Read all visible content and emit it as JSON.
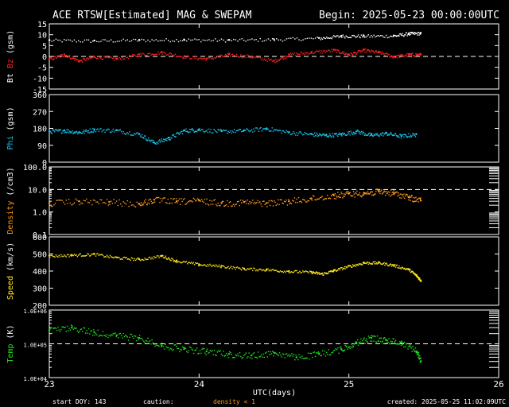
{
  "header": {
    "title": "ACE RTSW[Estimated] MAG & SWEPAM",
    "begin": "Begin: 2025-05-23 00:00:00UTC"
  },
  "footer": {
    "start_doy": "start DOY: 143",
    "caution": "caution:",
    "density_note": "density < 1",
    "created": "created: 2025-05-25 11:02:09UTC"
  },
  "colors": {
    "bt": "#ffffff",
    "bz": "#ff2020",
    "phi": "#19c8f0",
    "density": "#ff9a1a",
    "speed": "#ffea1a",
    "temp": "#20e020",
    "axis": "#ffffff",
    "background": "#000000"
  },
  "chart_data": {
    "type": "scatter",
    "xlabel": "UTC(days)",
    "xlim": [
      23,
      26
    ],
    "x_ticks": [
      "23",
      "24",
      "25",
      "26"
    ],
    "panels": [
      {
        "id": "bt-bz",
        "ylabel_parts": [
          {
            "text": "Bt",
            "color": "#ffffff"
          },
          {
            "text": " Bz",
            "color": "#ff2020"
          },
          {
            "text": " (gsm)",
            "color": "#ffffff"
          }
        ],
        "ylim": [
          -15,
          15
        ],
        "y_ticks": [
          "15",
          "10",
          "5",
          "0",
          "-5",
          "-10",
          "-15"
        ],
        "y_tick_values": [
          15,
          10,
          5,
          0,
          -5,
          -10,
          -15
        ],
        "log": false,
        "dashed_ref": 0,
        "series": [
          {
            "name": "Bt",
            "color": "#ffffff",
            "points": [
              [
                23.0,
                7.5
              ],
              [
                23.3,
                7.3
              ],
              [
                23.6,
                7.6
              ],
              [
                23.9,
                7.8
              ],
              [
                24.2,
                7.6
              ],
              [
                24.5,
                7.9
              ],
              [
                24.8,
                8.5
              ],
              [
                24.95,
                9.5
              ],
              [
                25.1,
                9.5
              ],
              [
                25.3,
                9.6
              ],
              [
                25.4,
                10.6
              ],
              [
                25.48,
                10.8
              ]
            ]
          },
          {
            "name": "Bz",
            "color": "#ff2020",
            "points": [
              [
                23.0,
                -1
              ],
              [
                23.1,
                1
              ],
              [
                23.2,
                -2
              ],
              [
                23.3,
                0
              ],
              [
                23.45,
                -1
              ],
              [
                23.6,
                1
              ],
              [
                23.75,
                2
              ],
              [
                23.9,
                0
              ],
              [
                24.05,
                -1
              ],
              [
                24.2,
                1
              ],
              [
                24.35,
                0
              ],
              [
                24.5,
                -2
              ],
              [
                24.6,
                1
              ],
              [
                24.75,
                2
              ],
              [
                24.9,
                3
              ],
              [
                25.0,
                1
              ],
              [
                25.1,
                3
              ],
              [
                25.2,
                2
              ],
              [
                25.3,
                0
              ],
              [
                25.4,
                1
              ],
              [
                25.48,
                1
              ]
            ]
          }
        ]
      },
      {
        "id": "phi",
        "ylabel_parts": [
          {
            "text": "Phi",
            "color": "#19c8f0"
          },
          {
            "text": " (gsm)",
            "color": "#ffffff"
          }
        ],
        "ylim": [
          0,
          360
        ],
        "y_ticks": [
          "360",
          "270",
          "180",
          "90",
          "0"
        ],
        "y_tick_values": [
          360,
          270,
          180,
          90,
          0
        ],
        "log": false,
        "series": [
          {
            "name": "Phi",
            "color": "#19c8f0",
            "points": [
              [
                23.0,
                165
              ],
              [
                23.1,
                170
              ],
              [
                23.2,
                160
              ],
              [
                23.3,
                175
              ],
              [
                23.45,
                170
              ],
              [
                23.6,
                150
              ],
              [
                23.7,
                105
              ],
              [
                23.8,
                130
              ],
              [
                23.9,
                170
              ],
              [
                24.0,
                175
              ],
              [
                24.15,
                165
              ],
              [
                24.3,
                170
              ],
              [
                24.45,
                180
              ],
              [
                24.6,
                160
              ],
              [
                24.75,
                150
              ],
              [
                24.85,
                145
              ],
              [
                24.95,
                150
              ],
              [
                25.05,
                165
              ],
              [
                25.15,
                145
              ],
              [
                25.25,
                155
              ],
              [
                25.35,
                140
              ],
              [
                25.45,
                150
              ]
            ]
          }
        ]
      },
      {
        "id": "density",
        "ylabel_parts": [
          {
            "text": "Density",
            "color": "#ff9a1a"
          },
          {
            "text": " (/cm3)",
            "color": "#ffffff"
          }
        ],
        "ylim": [
          0.1,
          100
        ],
        "y_ticks": [
          "100.0",
          "10.0",
          "1.0",
          "0.1"
        ],
        "y_tick_values": [
          100,
          10,
          1,
          0.1
        ],
        "log": true,
        "dashed_ref": 10,
        "series": [
          {
            "name": "Density",
            "color": "#ff9a1a",
            "points": [
              [
                23.0,
                2.5
              ],
              [
                23.2,
                3.0
              ],
              [
                23.4,
                2.8
              ],
              [
                23.6,
                2.3
              ],
              [
                23.7,
                3.5
              ],
              [
                23.85,
                3.0
              ],
              [
                24.0,
                3.2
              ],
              [
                24.15,
                2.5
              ],
              [
                24.3,
                2.8
              ],
              [
                24.45,
                2.5
              ],
              [
                24.6,
                3.0
              ],
              [
                24.75,
                4.0
              ],
              [
                24.9,
                5.5
              ],
              [
                25.0,
                6.5
              ],
              [
                25.1,
                7.0
              ],
              [
                25.2,
                8.0
              ],
              [
                25.3,
                7.0
              ],
              [
                25.4,
                4.5
              ],
              [
                25.48,
                3.2
              ]
            ]
          }
        ]
      },
      {
        "id": "speed",
        "ylabel_parts": [
          {
            "text": "Speed",
            "color": "#ffea1a"
          },
          {
            "text": " (km/s)",
            "color": "#ffffff"
          }
        ],
        "ylim": [
          200,
          600
        ],
        "y_ticks": [
          "600",
          "500",
          "400",
          "300",
          "200"
        ],
        "y_tick_values": [
          600,
          500,
          400,
          300,
          200
        ],
        "log": false,
        "series": [
          {
            "name": "Speed",
            "color": "#ffea1a",
            "points": [
              [
                23.0,
                490
              ],
              [
                23.15,
                495
              ],
              [
                23.3,
                500
              ],
              [
                23.45,
                480
              ],
              [
                23.6,
                470
              ],
              [
                23.75,
                490
              ],
              [
                23.85,
                460
              ],
              [
                24.0,
                440
              ],
              [
                24.15,
                430
              ],
              [
                24.3,
                415
              ],
              [
                24.45,
                410
              ],
              [
                24.6,
                400
              ],
              [
                24.75,
                395
              ],
              [
                24.82,
                385
              ],
              [
                24.9,
                405
              ],
              [
                25.0,
                430
              ],
              [
                25.1,
                450
              ],
              [
                25.2,
                450
              ],
              [
                25.3,
                435
              ],
              [
                25.4,
                410
              ],
              [
                25.45,
                375
              ],
              [
                25.48,
                345
              ]
            ]
          }
        ]
      },
      {
        "id": "temp",
        "ylabel_parts": [
          {
            "text": "Temp",
            "color": "#20e020"
          },
          {
            "text": " (K)",
            "color": "#ffffff"
          }
        ],
        "ylim": [
          10000,
          1000000
        ],
        "y_ticks": [
          "1.0E+06",
          "1.0E+05",
          "1.0E+04"
        ],
        "y_tick_values": [
          1000000,
          100000,
          10000
        ],
        "log": true,
        "dashed_ref": 100000,
        "series": [
          {
            "name": "Temp",
            "color": "#20e020",
            "points": [
              [
                23.0,
                250000
              ],
              [
                23.15,
                300000
              ],
              [
                23.3,
                220000
              ],
              [
                23.45,
                180000
              ],
              [
                23.6,
                150000
              ],
              [
                23.75,
                90000
              ],
              [
                23.9,
                70000
              ],
              [
                24.05,
                60000
              ],
              [
                24.2,
                50000
              ],
              [
                24.35,
                45000
              ],
              [
                24.5,
                55000
              ],
              [
                24.65,
                40000
              ],
              [
                24.8,
                50000
              ],
              [
                24.95,
                70000
              ],
              [
                25.05,
                110000
              ],
              [
                25.15,
                150000
              ],
              [
                25.25,
                130000
              ],
              [
                25.35,
                110000
              ],
              [
                25.45,
                60000
              ],
              [
                25.48,
                30000
              ]
            ]
          }
        ]
      }
    ]
  }
}
